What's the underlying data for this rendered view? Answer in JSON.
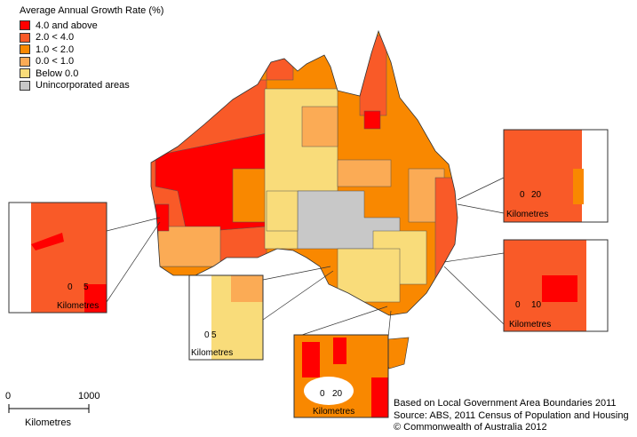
{
  "legend": {
    "title": "Average Annual Growth Rate (%)",
    "items": [
      {
        "label": "4.0 and above",
        "color": "#ff0000"
      },
      {
        "label": "2.0 < 4.0",
        "color": "#f95a28"
      },
      {
        "label": "1.0 < 2.0",
        "color": "#f98800"
      },
      {
        "label": "0.0 < 1.0",
        "color": "#fbab55"
      },
      {
        "label": "Below 0.0",
        "color": "#f9dc7a"
      },
      {
        "label": "Unincorporated areas",
        "color": "#c8c8c8"
      }
    ]
  },
  "scale_bar": {
    "start": "0",
    "end": "1000",
    "unit": "Kilometres"
  },
  "insets": {
    "perth": {
      "start": "0",
      "end": "5",
      "unit": "Kilometres"
    },
    "adelaide": {
      "start": "0",
      "end": "5",
      "unit": "Kilometres"
    },
    "melbourne": {
      "start": "0",
      "end": "20",
      "unit": "Kilometres"
    },
    "brisbane": {
      "start": "0",
      "end": "20",
      "unit": "Kilometres"
    },
    "sydney": {
      "start": "0",
      "end": "10",
      "unit": "Kilometres"
    }
  },
  "credits": [
    "Based on Local Government Area Boundaries 2011",
    "Source: ABS, 2011 Census of Population and Housing",
    "© Commonwealth of Australia 2012"
  ]
}
